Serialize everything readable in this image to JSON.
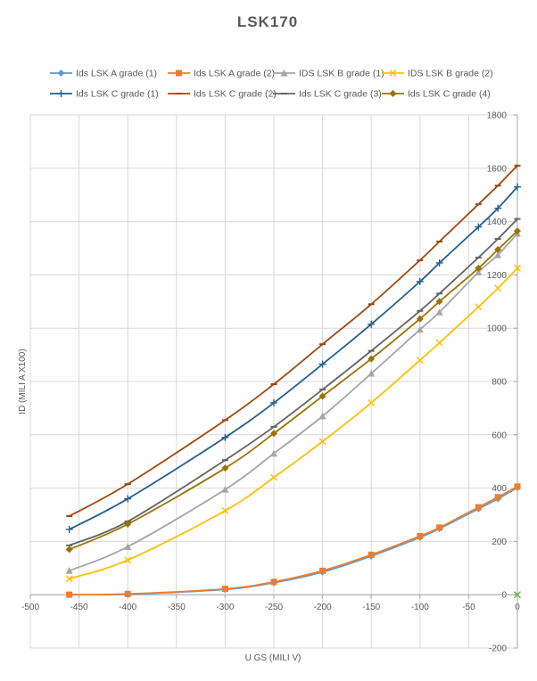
{
  "chart_data": {
    "type": "line",
    "title": "LSK170",
    "xlabel": "U GS (MILI V)",
    "ylabel": "ID  (MILI A X100)",
    "xlim": [
      -500,
      0
    ],
    "ylim": [
      -200,
      1800
    ],
    "xticks": [
      -500,
      -450,
      -400,
      -350,
      -300,
      -250,
      -200,
      -150,
      -100,
      -50,
      0
    ],
    "yticks": [
      -200,
      0,
      200,
      400,
      600,
      800,
      1000,
      1200,
      1400,
      1600,
      1800
    ],
    "grid": true,
    "legend_position": "top",
    "series": [
      {
        "name": "Ids LSK A grade (1)",
        "color": "#5b9bd5",
        "marker": "diamond",
        "x": [
          -460,
          -400,
          -300,
          -250,
          -200,
          -150,
          -100,
          -80,
          -40,
          -20,
          0
        ],
        "y": [
          0,
          2,
          20,
          45,
          85,
          145,
          215,
          248,
          322,
          360,
          402
        ]
      },
      {
        "name": "Ids LSK A grade (2)",
        "color": "#ed7d31",
        "marker": "square",
        "x": [
          -460,
          -400,
          -300,
          -250,
          -200,
          -150,
          -100,
          -80,
          -40,
          -20,
          0
        ],
        "y": [
          0,
          3,
          22,
          48,
          90,
          150,
          220,
          252,
          328,
          366,
          406
        ]
      },
      {
        "name": "IDS LSK B grade (1)",
        "color": "#a5a5a5",
        "marker": "triangle",
        "x": [
          -460,
          -400,
          -300,
          -250,
          -200,
          -150,
          -100,
          -80,
          -40,
          -20,
          0
        ],
        "y": [
          90,
          180,
          395,
          530,
          670,
          830,
          995,
          1060,
          1210,
          1275,
          1355
        ]
      },
      {
        "name": "IDS LSK B grade (2)",
        "color": "#ffc000",
        "marker": "x",
        "x": [
          -460,
          -400,
          -300,
          -250,
          -200,
          -150,
          -100,
          -80,
          -40,
          -20,
          0
        ],
        "y": [
          60,
          130,
          315,
          440,
          575,
          720,
          880,
          945,
          1080,
          1150,
          1225
        ]
      },
      {
        "name": "Ids LSK C grade (1)",
        "color": "#255e91",
        "marker": "plus",
        "x": [
          -460,
          -400,
          -300,
          -250,
          -200,
          -150,
          -100,
          -80,
          -40,
          -20,
          0
        ],
        "y": [
          245,
          360,
          590,
          720,
          865,
          1015,
          1175,
          1245,
          1380,
          1450,
          1530
        ]
      },
      {
        "name": "Ids LSK C grade (2)",
        "color": "#9e480e",
        "marker": "dash",
        "x": [
          -460,
          -400,
          -300,
          -250,
          -200,
          -150,
          -100,
          -80,
          -40,
          -20,
          0
        ],
        "y": [
          295,
          415,
          655,
          790,
          940,
          1090,
          1255,
          1325,
          1465,
          1535,
          1610
        ]
      },
      {
        "name": "Ids LSK C grade (3)",
        "color": "#636363",
        "marker": "dash",
        "x": [
          -460,
          -400,
          -300,
          -250,
          -200,
          -150,
          -100,
          -80,
          -40,
          -20,
          0
        ],
        "y": [
          185,
          275,
          505,
          630,
          770,
          915,
          1065,
          1130,
          1265,
          1335,
          1410
        ]
      },
      {
        "name": "Ids LSK C grade (4)",
        "color": "#997300",
        "marker": "diamond",
        "x": [
          -460,
          -400,
          -300,
          -250,
          -200,
          -150,
          -100,
          -80,
          -40,
          -20,
          0
        ],
        "y": [
          170,
          265,
          475,
          605,
          745,
          885,
          1035,
          1100,
          1225,
          1295,
          1365
        ]
      }
    ],
    "extra_points": [
      {
        "x": 0,
        "y": 0,
        "color": "#70ad47",
        "marker": "x"
      }
    ]
  }
}
